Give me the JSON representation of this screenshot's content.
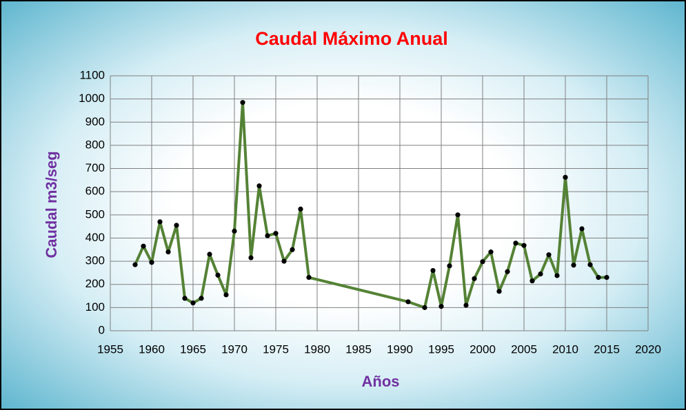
{
  "chart_data": {
    "type": "line",
    "title": "Caudal Máximo Anual",
    "x_label": "Años",
    "y_label": "Caudal m3/seg",
    "x": [
      1958,
      1959,
      1960,
      1961,
      1962,
      1963,
      1964,
      1965,
      1966,
      1967,
      1968,
      1969,
      1970,
      1971,
      1972,
      1973,
      1974,
      1975,
      1976,
      1977,
      1978,
      1979,
      1991,
      1993,
      1994,
      1995,
      1996,
      1997,
      1998,
      1999,
      2000,
      2001,
      2002,
      2003,
      2004,
      2005,
      2006,
      2007,
      2008,
      2009,
      2010,
      2011,
      2012,
      2013,
      2014,
      2015
    ],
    "series": [
      {
        "name": "Caudal",
        "color": "#548235",
        "marker_color": "#000000",
        "values": [
          285,
          365,
          295,
          470,
          340,
          455,
          140,
          120,
          140,
          330,
          240,
          155,
          430,
          985,
          315,
          625,
          410,
          420,
          300,
          350,
          525,
          230,
          125,
          100,
          260,
          105,
          280,
          500,
          110,
          225,
          298,
          340,
          170,
          255,
          378,
          368,
          215,
          245,
          328,
          238,
          662,
          283,
          440,
          285,
          230,
          230
        ]
      }
    ],
    "xlim": [
      1955,
      2020
    ],
    "xticks": [
      1955,
      1960,
      1965,
      1970,
      1975,
      1980,
      1985,
      1990,
      1995,
      2000,
      2005,
      2010,
      2015,
      2020
    ],
    "ylim": [
      0,
      1100
    ],
    "yticks": [
      0,
      100,
      200,
      300,
      400,
      500,
      600,
      700,
      800,
      900,
      1000,
      1100
    ],
    "grid": true
  }
}
